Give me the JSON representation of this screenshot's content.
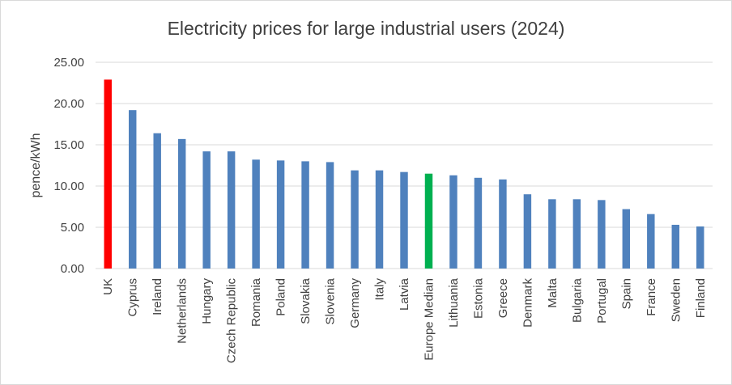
{
  "chart_data": {
    "type": "bar",
    "title": "Electricity prices for large industrial users (2024)",
    "xlabel": "",
    "ylabel": "pence/kWh",
    "ylim": [
      0,
      25
    ],
    "ytick_step": 5,
    "ytick_labels": [
      "0.00",
      "5.00",
      "10.00",
      "15.00",
      "20.00",
      "25.00"
    ],
    "grid": true,
    "legend": "none",
    "categories": [
      "UK",
      "Cyprus",
      "Ireland",
      "Netherlands",
      "Hungary",
      "Czech Republic",
      "Romania",
      "Poland",
      "Slovakia",
      "Slovenia",
      "Germany",
      "Italy",
      "Latvia",
      "Europe Median",
      "Lithuania",
      "Estonia",
      "Greece",
      "Denmark",
      "Malta",
      "Bulgaria",
      "Portugal",
      "Spain",
      "France",
      "Sweden",
      "Finland"
    ],
    "values": [
      22.9,
      19.2,
      16.4,
      15.7,
      14.2,
      14.2,
      13.2,
      13.1,
      13.0,
      12.9,
      11.9,
      11.9,
      11.7,
      11.5,
      11.3,
      11.0,
      10.8,
      9.0,
      8.4,
      8.4,
      8.3,
      7.2,
      6.6,
      5.3,
      5.1
    ],
    "colors": {
      "default": "#4f81bd",
      "UK": "#ff0000",
      "Europe Median": "#00b050"
    }
  }
}
